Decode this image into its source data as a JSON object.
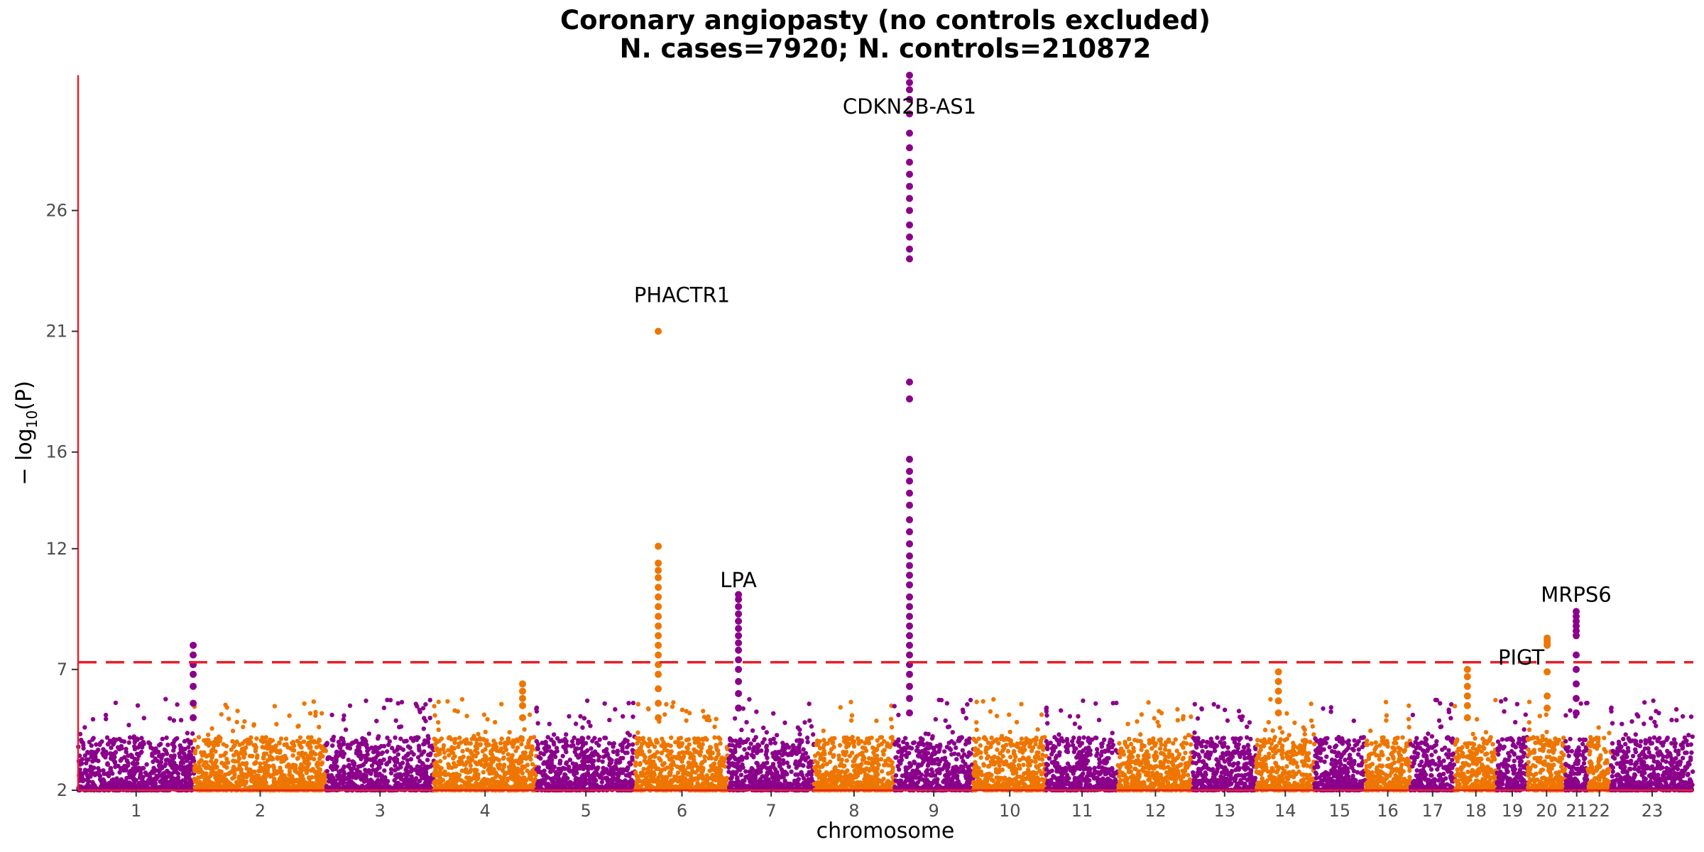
{
  "chart_data": {
    "type": "scatter",
    "title": "Coronary angiopasty (no controls excluded)",
    "subtitle": "N. cases=7920; N. controls=210872",
    "xlabel": "chromosome",
    "ylabel_prefix": "− log",
    "ylabel_sub": "10",
    "ylabel_suffix": "(P)",
    "ylim": [
      2,
      31.6
    ],
    "y_ticks": [
      2,
      7,
      12,
      16,
      21,
      26
    ],
    "significance_line": 7.3,
    "colors": {
      "odd": "#8b008b",
      "even": "#ee7600",
      "axis": "#e8202a",
      "threshold": "#e8202a"
    },
    "chromosomes": [
      {
        "label": "1",
        "start": 0,
        "end": 11
      },
      {
        "label": "2",
        "start": 11,
        "end": 23.5
      },
      {
        "label": "3",
        "start": 23.5,
        "end": 33.7
      },
      {
        "label": "4",
        "start": 33.7,
        "end": 43.4
      },
      {
        "label": "5",
        "start": 43.4,
        "end": 52.8
      },
      {
        "label": "6",
        "start": 52.8,
        "end": 61.6
      },
      {
        "label": "7",
        "start": 61.6,
        "end": 69.7
      },
      {
        "label": "8",
        "start": 69.7,
        "end": 77.3
      },
      {
        "label": "9",
        "start": 77.3,
        "end": 84.8
      },
      {
        "label": "10",
        "start": 84.8,
        "end": 91.7
      },
      {
        "label": "11",
        "start": 91.7,
        "end": 98.5
      },
      {
        "label": "12",
        "start": 98.5,
        "end": 105.6
      },
      {
        "label": "13",
        "start": 105.6,
        "end": 111.6
      },
      {
        "label": "14",
        "start": 111.6,
        "end": 117.1
      },
      {
        "label": "15",
        "start": 117.1,
        "end": 121.9
      },
      {
        "label": "16",
        "start": 121.9,
        "end": 126.2
      },
      {
        "label": "17",
        "start": 126.2,
        "end": 130.4
      },
      {
        "label": "18",
        "start": 130.4,
        "end": 134.4
      },
      {
        "label": "19",
        "start": 134.4,
        "end": 137.3
      },
      {
        "label": "20",
        "start": 137.3,
        "end": 140.9
      },
      {
        "label": "21",
        "start": 140.9,
        "end": 143.0
      },
      {
        "label": "22",
        "start": 143.0,
        "end": 145.2
      },
      {
        "label": "23",
        "start": 145.2,
        "end": 153.0
      }
    ],
    "peaks": [
      {
        "x": 54.95,
        "ys": [
          21.0,
          12.1,
          11.4,
          11.1,
          10.8,
          10.4,
          10.0,
          9.6,
          9.2,
          8.8,
          8.4,
          8.0,
          7.6,
          7.2,
          6.8,
          6.2,
          5.6,
          5.0
        ]
      },
      {
        "x": 62.55,
        "ys": [
          10.1,
          9.9,
          9.6,
          9.3,
          9.0,
          8.7,
          8.4,
          8.1,
          7.8,
          7.4,
          7.0,
          6.5,
          6.0,
          5.4
        ]
      },
      {
        "x": 78.75,
        "ys": [
          31.6,
          31.3,
          31.0,
          30.6,
          30.0,
          29.2,
          28.6,
          28.0,
          27.5,
          27.0,
          26.5,
          26.0,
          25.4,
          24.9,
          24.4,
          24.0,
          18.9,
          18.2,
          15.7,
          15.2,
          14.8,
          14.3,
          13.8,
          13.2,
          12.7,
          12.2,
          11.7,
          11.3,
          10.9,
          10.5,
          10.0,
          9.6,
          9.2,
          8.8,
          8.4,
          8.0,
          7.6,
          7.2,
          6.8,
          6.3,
          5.8,
          5.2
        ]
      },
      {
        "x": 139.15,
        "ys": [
          8.3,
          8.2,
          8.1,
          8.0,
          6.9,
          5.9,
          5.4
        ]
      },
      {
        "x": 141.9,
        "ys": [
          9.4,
          9.2,
          9.0,
          8.8,
          8.6,
          8.4,
          7.6,
          7.0,
          6.4,
          5.8,
          5.2
        ]
      },
      {
        "x": 10.9,
        "ys": [
          8.0,
          7.6,
          7.2,
          6.8,
          6.3,
          5.6,
          5.0
        ]
      },
      {
        "x": 42.1,
        "ys": [
          6.4,
          6.1,
          5.8,
          5.5,
          5.0
        ]
      },
      {
        "x": 131.6,
        "ys": [
          7.0,
          6.7,
          6.3,
          5.9,
          5.5,
          5.0
        ]
      },
      {
        "x": 113.7,
        "ys": [
          6.9,
          6.5,
          6.1,
          5.7,
          5.2
        ]
      }
    ],
    "annotations": [
      {
        "text": "CDKN2B-AS1",
        "x": 78.75,
        "y": 30.3
      },
      {
        "text": "PHACTR1",
        "x": 57.2,
        "y": 22.5
      },
      {
        "text": "LPA",
        "x": 62.55,
        "y": 10.7
      },
      {
        "text": "MRPS6",
        "x": 141.9,
        "y": 10.1
      },
      {
        "text": "PIGT",
        "x": 136.7,
        "y": 7.5
      }
    ]
  }
}
